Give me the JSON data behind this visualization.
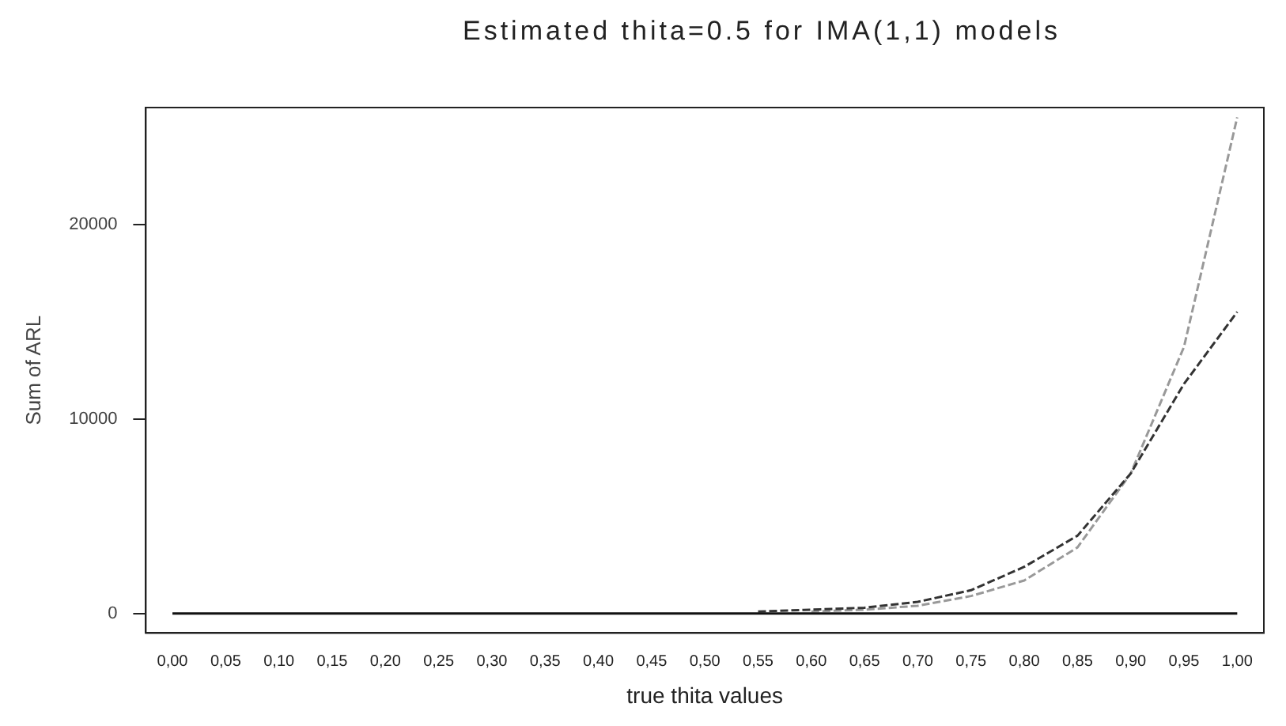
{
  "chart_data": {
    "type": "line",
    "title": "Estimated thita=0.5 for IMA(1,1) models",
    "xlabel": "true thita values",
    "ylabel": "Sum of ARL",
    "categories": [
      "0,00",
      "0,05",
      "0,10",
      "0,15",
      "0,20",
      "0,25",
      "0,30",
      "0,35",
      "0,40",
      "0,45",
      "0,50",
      "0,55",
      "0,60",
      "0,65",
      "0,70",
      "0,75",
      "0,80",
      "0,85",
      "0,90",
      "0,95",
      "1,00"
    ],
    "series": [
      {
        "color": "#111111",
        "line_style": "solid",
        "values": [
          0,
          0,
          0,
          0,
          0,
          0,
          0,
          0,
          0,
          0,
          0,
          0,
          0,
          0,
          0,
          0,
          0,
          0,
          0,
          0,
          0
        ]
      },
      {
        "color": "#333333",
        "line_style": "dashed",
        "values": [
          null,
          null,
          null,
          null,
          null,
          null,
          null,
          null,
          null,
          null,
          null,
          100,
          200,
          300,
          600,
          1200,
          2400,
          4000,
          7200,
          11800,
          15500
        ]
      },
      {
        "color": "#999999",
        "line_style": "dashed",
        "values": [
          null,
          null,
          null,
          null,
          null,
          null,
          null,
          null,
          null,
          null,
          null,
          null,
          100,
          200,
          400,
          900,
          1700,
          3400,
          7200,
          13700,
          25500
        ]
      }
    ],
    "ylim": [
      -1000,
      26000
    ],
    "yticks": [
      0,
      10000,
      20000
    ],
    "grid": false,
    "legend": false,
    "marker": "none"
  }
}
